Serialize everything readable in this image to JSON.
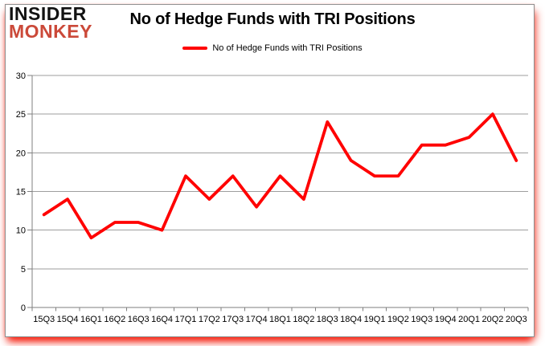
{
  "header": {
    "logo_line1": "INSIDER",
    "logo_line2": "MONKEY",
    "title": "No of Hedge Funds with TRI Positions"
  },
  "legend": {
    "label": "No of Hedge Funds with TRI Positions"
  },
  "colors": {
    "line": "#ff0000",
    "logo_red": "#cb4939",
    "logo_black": "#121212",
    "axis": "#7f7f7f",
    "grid": "#9e9e9e",
    "label_text": "#000000"
  },
  "chart_data": {
    "type": "line",
    "title": "No of Hedge Funds with TRI Positions",
    "categories": [
      "15Q3",
      "15Q4",
      "16Q1",
      "16Q2",
      "16Q3",
      "16Q4",
      "17Q1",
      "17Q2",
      "17Q3",
      "17Q4",
      "18Q1",
      "18Q2",
      "18Q3",
      "18Q4",
      "19Q1",
      "19Q2",
      "19Q3",
      "19Q4",
      "20Q1",
      "20Q2",
      "20Q3"
    ],
    "series": [
      {
        "name": "No of Hedge Funds with TRI Positions",
        "values": [
          12,
          14,
          9,
          11,
          11,
          10,
          17,
          14,
          17,
          13,
          17,
          14,
          24,
          19,
          17,
          17,
          21,
          21,
          22,
          25,
          19
        ]
      }
    ],
    "xlabel": "",
    "ylabel": "",
    "ylim": [
      0,
      30
    ],
    "yticks": [
      0,
      5,
      10,
      15,
      20,
      25,
      30
    ],
    "grid": true,
    "legend_position": "top-center",
    "line_color": "#ff0000"
  }
}
